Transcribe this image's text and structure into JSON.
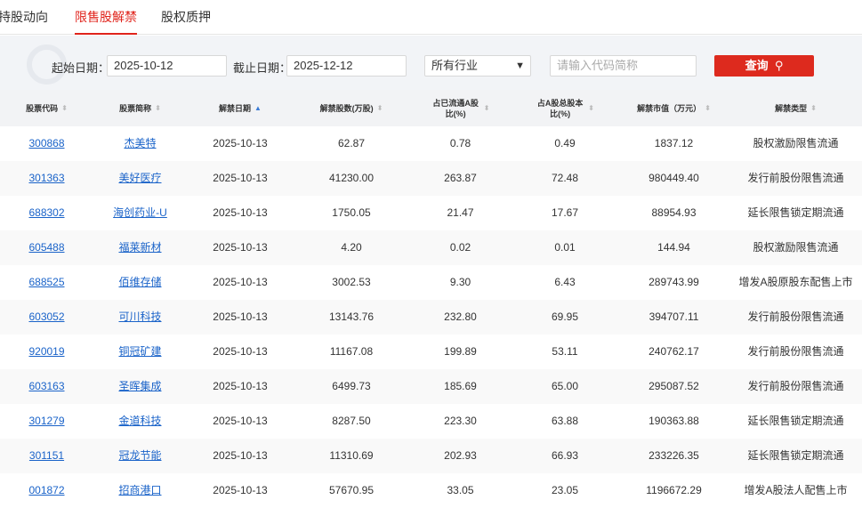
{
  "tabs": [
    {
      "label": "持股动向"
    },
    {
      "label": "限售股解禁"
    },
    {
      "label": "股权质押"
    }
  ],
  "active_tab": "限售股解禁",
  "filter": {
    "start_label": "起始日期：",
    "start_value": "2025-10-12",
    "end_label": "截止日期：",
    "end_value": "2025-12-12",
    "industry_value": "所有行业",
    "search_placeholder": "请输入代码简称",
    "query_label": "查询",
    "query_icon": "search-icon"
  },
  "table": {
    "columns": [
      "股票代码",
      "股票简称",
      "解禁日期",
      "解禁股数(万股)",
      "占已流通A股比(%)",
      "占A股总股本比(%)",
      "解禁市值（万元）",
      "解禁类型"
    ],
    "sorted_column": "解禁日期",
    "rows": [
      [
        "300868",
        "杰美特",
        "2025-10-13",
        "62.87",
        "0.78",
        "0.49",
        "1837.12",
        "股权激励限售流通"
      ],
      [
        "301363",
        "美好医疗",
        "2025-10-13",
        "41230.00",
        "263.87",
        "72.48",
        "980449.40",
        "发行前股份限售流通"
      ],
      [
        "688302",
        "海创药业-U",
        "2025-10-13",
        "1750.05",
        "21.47",
        "17.67",
        "88954.93",
        "延长限售锁定期流通"
      ],
      [
        "605488",
        "福莱新材",
        "2025-10-13",
        "4.20",
        "0.02",
        "0.01",
        "144.94",
        "股权激励限售流通"
      ],
      [
        "688525",
        "佰维存储",
        "2025-10-13",
        "3002.53",
        "9.30",
        "6.43",
        "289743.99",
        "增发A股原股东配售上市"
      ],
      [
        "603052",
        "可川科技",
        "2025-10-13",
        "13143.76",
        "232.80",
        "69.95",
        "394707.11",
        "发行前股份限售流通"
      ],
      [
        "920019",
        "铜冠矿建",
        "2025-10-13",
        "11167.08",
        "199.89",
        "53.11",
        "240762.17",
        "发行前股份限售流通"
      ],
      [
        "603163",
        "圣晖集成",
        "2025-10-13",
        "6499.73",
        "185.69",
        "65.00",
        "295087.52",
        "发行前股份限售流通"
      ],
      [
        "301279",
        "金道科技",
        "2025-10-13",
        "8287.50",
        "223.30",
        "63.88",
        "190363.88",
        "延长限售锁定期流通"
      ],
      [
        "301151",
        "冠龙节能",
        "2025-10-13",
        "11310.69",
        "202.93",
        "66.93",
        "233226.35",
        "延长限售锁定期流通"
      ],
      [
        "001872",
        "招商港口",
        "2025-10-13",
        "57670.95",
        "33.05",
        "23.05",
        "1196672.29",
        "增发A股法人配售上市"
      ]
    ]
  },
  "colors": {
    "accent": "#e0231b",
    "link": "#1a63c9"
  }
}
